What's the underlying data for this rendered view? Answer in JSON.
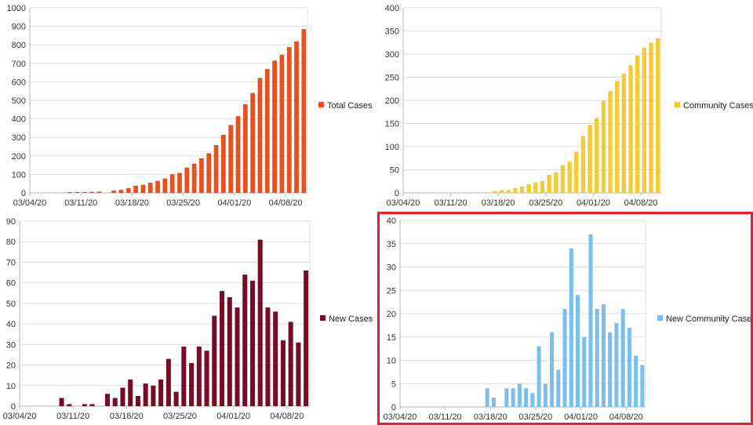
{
  "highlight_color": "#e3202a",
  "chart_data": [
    {
      "type": "bar",
      "series": [
        {
          "name": "Total Cases",
          "color": "#e8501e",
          "values": [
            null,
            null,
            null,
            null,
            null,
            4,
            5,
            5,
            6,
            7,
            null,
            13,
            17,
            26,
            39,
            44,
            55,
            65,
            78,
            101,
            108,
            137,
            158,
            187,
            214,
            258,
            314,
            367,
            415,
            479,
            540,
            621,
            669,
            715,
            747,
            788,
            819,
            885
          ]
        }
      ],
      "ylim": [
        0,
        1000
      ],
      "yticks": [
        "0",
        "100",
        "200",
        "300",
        "400",
        "500",
        "600",
        "700",
        "800",
        "900",
        "1000"
      ],
      "xticks": [
        "03/04/20",
        "03/11/20",
        "03/18/20",
        "03/25/20",
        "04/01/20",
        "04/08/20"
      ],
      "grid": true,
      "legend": "right"
    },
    {
      "type": "bar",
      "series": [
        {
          "name": "Community Cases",
          "color": "#f3cb35",
          "values": [
            null,
            null,
            null,
            null,
            null,
            null,
            null,
            null,
            null,
            null,
            null,
            null,
            null,
            4,
            6,
            6,
            10,
            14,
            19,
            23,
            26,
            39,
            44,
            60,
            68,
            89,
            123,
            147,
            162,
            199,
            220,
            242,
            258,
            276,
            297,
            314,
            325,
            334
          ]
        }
      ],
      "ylim": [
        0,
        400
      ],
      "yticks": [
        "0",
        "50",
        "100",
        "150",
        "200",
        "250",
        "300",
        "350",
        "400"
      ],
      "xticks": [
        "03/04/20",
        "03/11/20",
        "03/18/20",
        "03/25/20",
        "04/01/20",
        "04/08/20"
      ],
      "grid": true,
      "legend": "right"
    },
    {
      "type": "bar",
      "series": [
        {
          "name": "New Cases",
          "color": "#760c25",
          "values": [
            null,
            null,
            null,
            null,
            null,
            4,
            1,
            null,
            1,
            1,
            null,
            6,
            4,
            9,
            13,
            5,
            11,
            10,
            13,
            23,
            7,
            29,
            21,
            29,
            27,
            44,
            56,
            53,
            48,
            64,
            61,
            81,
            48,
            46,
            32,
            41,
            31,
            66
          ]
        }
      ],
      "ylim": [
        0,
        90
      ],
      "yticks": [
        "0",
        "10",
        "20",
        "30",
        "40",
        "50",
        "60",
        "70",
        "80",
        "90"
      ],
      "xticks": [
        "03/04/20",
        "03/11/20",
        "03/18/20",
        "03/25/20",
        "04/01/20",
        "04/08/20"
      ],
      "grid": true,
      "legend": "right"
    },
    {
      "type": "bar",
      "series": [
        {
          "name": "New Community Cases",
          "color": "#7cc0ea",
          "values": [
            null,
            null,
            null,
            null,
            null,
            null,
            null,
            null,
            null,
            null,
            null,
            null,
            null,
            4,
            2,
            null,
            4,
            4,
            5,
            4,
            3,
            13,
            5,
            16,
            8,
            21,
            34,
            24,
            15,
            37,
            21,
            22,
            16,
            18,
            21,
            17,
            11,
            9
          ]
        }
      ],
      "ylim": [
        0,
        40
      ],
      "yticks": [
        "0",
        "5",
        "10",
        "15",
        "20",
        "25",
        "30",
        "35",
        "40"
      ],
      "xticks": [
        "03/04/20",
        "03/11/20",
        "03/18/20",
        "03/25/20",
        "04/01/20",
        "04/08/20"
      ],
      "grid": true,
      "legend": "right"
    }
  ]
}
